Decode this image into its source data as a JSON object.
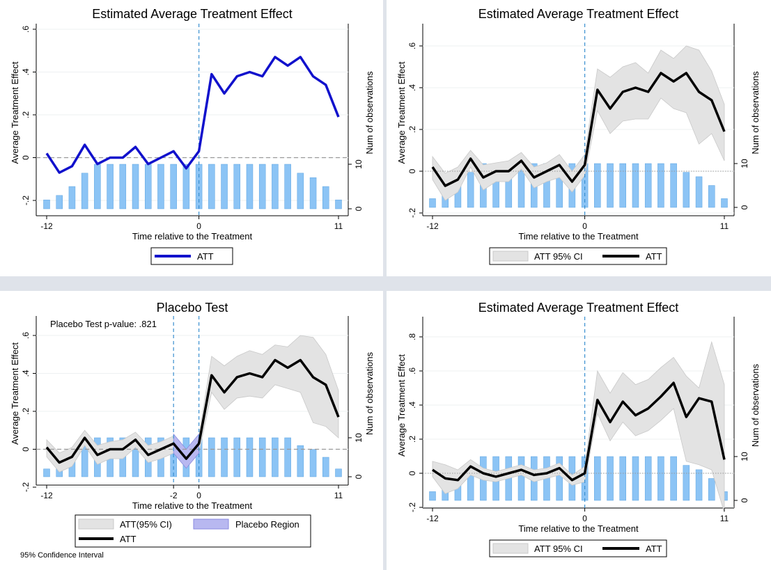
{
  "chart_data": [
    {
      "type": "line",
      "title": "Estimated Average Treatment Effect",
      "xlabel": "Time relative to the Treatment",
      "ylabel": "Average Treatment Effect",
      "y2label": "Num of observations",
      "x_ticks": [
        "-12",
        "0",
        "11"
      ],
      "y_ticks": [
        "-.2",
        "0",
        ".2",
        ".4",
        ".6"
      ],
      "y2_ticks": [
        "0",
        "10"
      ],
      "xlim": [
        -12,
        11
      ],
      "ylim": [
        -0.2,
        0.6
      ],
      "y2lim": [
        0,
        10
      ],
      "x": [
        -12,
        -11,
        -10,
        -9,
        -8,
        -7,
        -6,
        -5,
        -4,
        -3,
        -2,
        -1,
        0,
        1,
        2,
        3,
        4,
        5,
        6,
        7,
        8,
        9,
        10,
        11
      ],
      "series": [
        {
          "name": "ATT",
          "values": [
            0.02,
            -0.07,
            -0.04,
            0.06,
            -0.03,
            0.0,
            0.0,
            0.05,
            -0.03,
            0.0,
            0.03,
            -0.05,
            0.03,
            0.39,
            0.3,
            0.38,
            0.4,
            0.38,
            0.47,
            0.43,
            0.47,
            0.38,
            0.34,
            0.19
          ],
          "color": "#1111cc"
        }
      ],
      "obs": [
        2,
        3,
        5,
        8,
        10,
        10,
        10,
        10,
        10,
        10,
        10,
        10,
        10,
        10,
        10,
        10,
        10,
        10,
        10,
        10,
        8,
        7,
        5,
        2
      ],
      "show_ci": false,
      "placebo": false,
      "legend": [
        {
          "label": "ATT",
          "kind": "line",
          "color": "#1111cc"
        }
      ],
      "legend_placement": "bottom"
    },
    {
      "type": "line",
      "title": "Estimated Average Treatment Effect",
      "xlabel": "Time relative to the Treatment",
      "ylabel": "Average Treatment Effect",
      "y2label": "Num of observations",
      "x_ticks": [
        "-12",
        "0",
        "11"
      ],
      "y_ticks": [
        "-.2",
        "0",
        ".2",
        ".4",
        ".6"
      ],
      "y2_ticks": [
        "0",
        "10"
      ],
      "xlim": [
        -12,
        11
      ],
      "ylim": [
        -0.2,
        0.6
      ],
      "y2lim": [
        0,
        10
      ],
      "x": [
        -12,
        -11,
        -10,
        -9,
        -8,
        -7,
        -6,
        -5,
        -4,
        -3,
        -2,
        -1,
        0,
        1,
        2,
        3,
        4,
        5,
        6,
        7,
        8,
        9,
        10,
        11
      ],
      "series": [
        {
          "name": "ATT",
          "values": [
            0.02,
            -0.07,
            -0.04,
            0.06,
            -0.03,
            0.0,
            0.0,
            0.05,
            -0.03,
            0.0,
            0.03,
            -0.05,
            0.03,
            0.39,
            0.3,
            0.38,
            0.4,
            0.38,
            0.47,
            0.43,
            0.47,
            0.38,
            0.34,
            0.19
          ],
          "color": "#000000"
        }
      ],
      "ci_lower": [
        -0.04,
        -0.14,
        -0.1,
        0.02,
        -0.09,
        -0.05,
        -0.05,
        0.01,
        -0.08,
        -0.05,
        -0.03,
        -0.1,
        -0.02,
        0.29,
        0.18,
        0.24,
        0.25,
        0.25,
        0.35,
        0.3,
        0.28,
        0.13,
        0.18,
        0.05
      ],
      "ci_upper": [
        0.07,
        -0.01,
        0.02,
        0.1,
        0.03,
        0.04,
        0.05,
        0.09,
        0.02,
        0.04,
        0.08,
        0.0,
        0.08,
        0.49,
        0.45,
        0.5,
        0.52,
        0.47,
        0.58,
        0.54,
        0.6,
        0.58,
        0.48,
        0.32
      ],
      "obs": [
        2,
        3,
        5,
        8,
        10,
        10,
        10,
        10,
        10,
        10,
        10,
        10,
        10,
        10,
        10,
        10,
        10,
        10,
        10,
        10,
        8,
        7,
        5,
        2
      ],
      "show_ci": true,
      "placebo": false,
      "legend": [
        {
          "label": "ATT 95% CI",
          "kind": "area"
        },
        {
          "label": "ATT",
          "kind": "line",
          "color": "#000000"
        }
      ],
      "legend_placement": "bottom"
    },
    {
      "type": "line",
      "title": "Placebo Test",
      "note": "Placebo Test p-value: .821",
      "footnote": "95% Confidence Interval",
      "xlabel": "Time relative to the Treatment",
      "ylabel": "Average Treatment Effect",
      "y2label": "Num of observations",
      "x_ticks": [
        "-12",
        "-2",
        "0",
        "11"
      ],
      "y_ticks": [
        "-.2",
        "0",
        ".2",
        ".4",
        ".6"
      ],
      "y2_ticks": [
        "0",
        "10"
      ],
      "xlim": [
        -12,
        11
      ],
      "ylim": [
        -0.2,
        0.6
      ],
      "y2lim": [
        0,
        10
      ],
      "x": [
        -12,
        -11,
        -10,
        -9,
        -8,
        -7,
        -6,
        -5,
        -4,
        -3,
        -2,
        -1,
        0,
        1,
        2,
        3,
        4,
        5,
        6,
        7,
        8,
        9,
        10,
        11
      ],
      "series": [
        {
          "name": "ATT",
          "values": [
            0.01,
            -0.07,
            -0.04,
            0.06,
            -0.03,
            0.0,
            0.0,
            0.05,
            -0.03,
            0.0,
            0.03,
            -0.05,
            0.03,
            0.39,
            0.3,
            0.38,
            0.4,
            0.38,
            0.47,
            0.43,
            0.47,
            0.38,
            0.34,
            0.17
          ],
          "color": "#000000"
        }
      ],
      "ci_lower": [
        -0.04,
        -0.12,
        -0.09,
        0.02,
        -0.08,
        -0.05,
        -0.05,
        0.01,
        -0.07,
        -0.05,
        -0.02,
        -0.1,
        -0.02,
        0.3,
        0.21,
        0.27,
        0.28,
        0.27,
        0.34,
        0.32,
        0.3,
        0.14,
        0.12,
        0.06
      ],
      "ci_upper": [
        0.05,
        -0.02,
        0.01,
        0.1,
        0.02,
        0.04,
        0.05,
        0.09,
        0.02,
        0.04,
        0.07,
        0.0,
        0.07,
        0.49,
        0.44,
        0.49,
        0.52,
        0.5,
        0.55,
        0.54,
        0.6,
        0.59,
        0.5,
        0.31
      ],
      "placebo_lower": [
        -0.02,
        -0.1,
        -0.02
      ],
      "placebo_upper": [
        0.08,
        0.0,
        0.08
      ],
      "obs": [
        2,
        3,
        5,
        8,
        10,
        10,
        10,
        10,
        10,
        10,
        10,
        10,
        10,
        10,
        10,
        10,
        10,
        10,
        10,
        10,
        8,
        7,
        5,
        2
      ],
      "show_ci": true,
      "placebo": true,
      "placebo_range": [
        -2,
        0
      ],
      "legend": [
        {
          "label": "ATT(95% CI)",
          "kind": "area"
        },
        {
          "label": "Placebo Region",
          "kind": "placebo"
        },
        {
          "label": "ATT",
          "kind": "line",
          "color": "#000000"
        }
      ],
      "legend_placement": "bottom"
    },
    {
      "type": "line",
      "title": "Estimated Average Treatment Effect",
      "xlabel": "Time relative to the Treatment",
      "ylabel": "Average Treatment Effect",
      "y2label": "Num of observations",
      "x_ticks": [
        "-12",
        "0",
        "11"
      ],
      "y_ticks": [
        "-.2",
        "0",
        ".2",
        ".4",
        ".6",
        ".8"
      ],
      "y2_ticks": [
        "0",
        "10"
      ],
      "xlim": [
        -12,
        11
      ],
      "ylim": [
        -0.2,
        0.8
      ],
      "y2lim": [
        0,
        10
      ],
      "x": [
        -12,
        -11,
        -10,
        -9,
        -8,
        -7,
        -6,
        -5,
        -4,
        -3,
        -2,
        -1,
        0,
        1,
        2,
        3,
        4,
        5,
        6,
        7,
        8,
        9,
        10,
        11
      ],
      "series": [
        {
          "name": "ATT",
          "values": [
            0.02,
            -0.03,
            -0.04,
            0.04,
            0.0,
            -0.02,
            0.0,
            0.02,
            -0.01,
            0.0,
            0.03,
            -0.04,
            0.0,
            0.43,
            0.3,
            0.42,
            0.34,
            0.38,
            0.45,
            0.53,
            0.33,
            0.44,
            0.42,
            0.08
          ],
          "color": "#000000"
        }
      ],
      "ci_lower": [
        -0.02,
        -0.12,
        -0.09,
        -0.01,
        -0.04,
        -0.05,
        -0.03,
        -0.01,
        -0.05,
        -0.03,
        -0.01,
        -0.07,
        -0.05,
        0.35,
        0.19,
        0.3,
        0.22,
        0.25,
        0.31,
        0.38,
        0.07,
        0.05,
        0.02,
        -0.23
      ],
      "ci_upper": [
        0.07,
        0.05,
        0.02,
        0.08,
        0.03,
        0.01,
        0.03,
        0.05,
        0.02,
        0.03,
        0.06,
        -0.01,
        0.04,
        0.6,
        0.47,
        0.59,
        0.52,
        0.55,
        0.62,
        0.68,
        0.57,
        0.5,
        0.77,
        0.52
      ],
      "obs": [
        2,
        3,
        5,
        8,
        10,
        10,
        10,
        10,
        10,
        10,
        10,
        10,
        10,
        10,
        10,
        10,
        10,
        10,
        10,
        10,
        8,
        7,
        5,
        2
      ],
      "show_ci": true,
      "placebo": false,
      "legend": [
        {
          "label": "ATT 95% CI",
          "kind": "area"
        },
        {
          "label": "ATT",
          "kind": "line",
          "color": "#000000"
        }
      ],
      "legend_placement": "bottom"
    }
  ]
}
